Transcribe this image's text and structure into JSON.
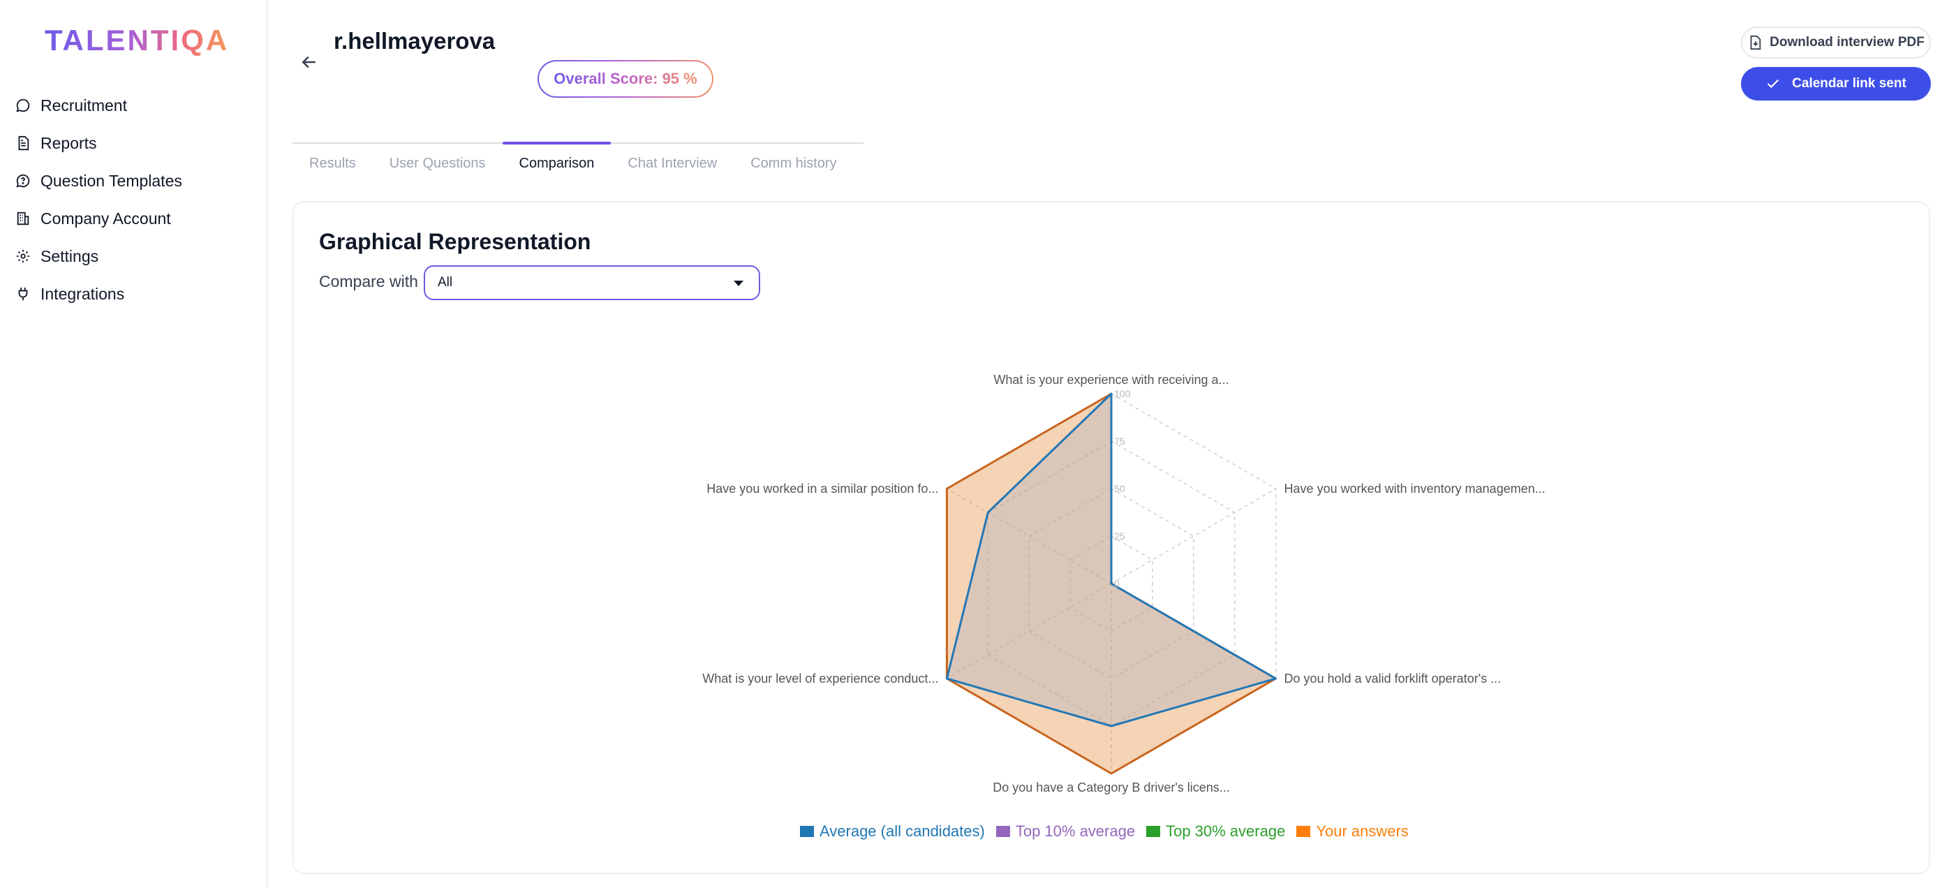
{
  "brand": {
    "logo_text": "TALENTIQA"
  },
  "sidebar": {
    "items": [
      {
        "label": "Recruitment",
        "icon": "chat-bubble-icon"
      },
      {
        "label": "Reports",
        "icon": "document-icon"
      },
      {
        "label": "Question Templates",
        "icon": "question-bubble-icon"
      },
      {
        "label": "Company Account",
        "icon": "building-icon"
      },
      {
        "label": "Settings",
        "icon": "gear-icon"
      },
      {
        "label": "Integrations",
        "icon": "plug-icon"
      }
    ]
  },
  "header": {
    "candidate_name": "r.hellmayerova",
    "overall_score": "Overall Score: 95 %",
    "download_pdf_label": "Download interview PDF",
    "calendar_label": "Calendar link sent"
  },
  "tabs": [
    {
      "label": "Results",
      "active": false
    },
    {
      "label": "User Questions",
      "active": false
    },
    {
      "label": "Comparison",
      "active": true
    },
    {
      "label": "Chat Interview",
      "active": false
    },
    {
      "label": "Comm history",
      "active": false
    }
  ],
  "comparison": {
    "title": "Graphical Representation",
    "compare_label": "Compare with",
    "compare_value": "All"
  },
  "colors": {
    "accent": "#3d4ee8",
    "tab_active": "#6d4ee4",
    "average": "#1f77b4",
    "top10": "#9467bd",
    "top30": "#2ca02c",
    "yours": "#ff7f0e"
  },
  "chart_data": {
    "type": "radar",
    "axes": [
      "What is your experience with receiving a...",
      "Have you worked with inventory managemen...",
      "Do you hold a valid forklift operator's ...",
      "Do you have a Category B driver's licens...",
      "What is your level of experience conduct...",
      "Have you worked in a similar position fo..."
    ],
    "ticks": [
      "0",
      "25",
      "50",
      "75",
      "100"
    ],
    "range": [
      0,
      100
    ],
    "series": [
      {
        "name": "Your answers",
        "color": "#ff7f0e",
        "values": [
          100,
          0,
          100,
          100,
          100,
          100
        ]
      },
      {
        "name": "Average (all candidates)",
        "color": "#1f77b4",
        "values": [
          100,
          0,
          100,
          75,
          100,
          75
        ]
      }
    ],
    "legend": [
      {
        "name": "Average (all candidates)",
        "color": "#1f77b4"
      },
      {
        "name": "Top 10% average",
        "color": "#9467bd"
      },
      {
        "name": "Top 30% average",
        "color": "#2ca02c"
      },
      {
        "name": "Your answers",
        "color": "#ff7f0e"
      }
    ],
    "legend_position": "bottom"
  }
}
